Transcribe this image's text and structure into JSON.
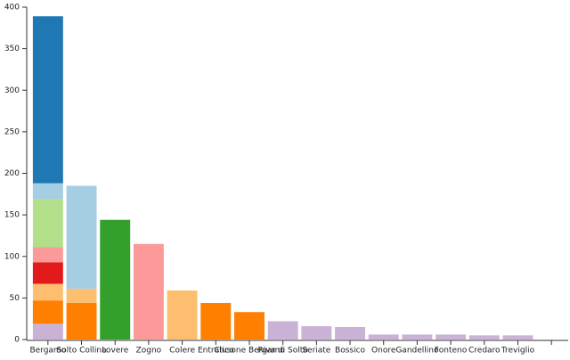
{
  "chart_data": {
    "type": "stacked_bar",
    "categories": [
      "Bergamo",
      "Solto Collina",
      "Lovere",
      "Zogno",
      "Colere",
      "Entratico",
      "Clusone Bergamo",
      "Riva di Solto",
      "Seriate",
      "Bossico",
      "Onore",
      "Gandellino",
      "Fonteno",
      "Credaro",
      "Treviglio",
      null
    ],
    "series": [
      {
        "color": "#cab2d6",
        "values": [
          19,
          null,
          null,
          null,
          null,
          null,
          null,
          22,
          16,
          15,
          6,
          6,
          6,
          5,
          5,
          null
        ]
      },
      {
        "color": "#ff7f00",
        "values": [
          28,
          44,
          null,
          null,
          null,
          44,
          33,
          null,
          null,
          null,
          null,
          null,
          null,
          null,
          null,
          null
        ]
      },
      {
        "color": "#fdbf6f",
        "values": [
          20,
          17,
          null,
          null,
          59,
          null,
          null,
          null,
          null,
          null,
          null,
          null,
          null,
          null,
          null,
          null
        ]
      },
      {
        "color": "#e31a1c",
        "values": [
          26,
          null,
          null,
          null,
          null,
          null,
          null,
          null,
          null,
          null,
          null,
          null,
          null,
          null,
          null,
          null
        ]
      },
      {
        "color": "#fb9a99",
        "values": [
          18,
          null,
          null,
          115,
          null,
          null,
          null,
          null,
          null,
          null,
          null,
          null,
          null,
          null,
          null,
          null
        ]
      },
      {
        "color": "#33a02c",
        "values": [
          null,
          null,
          144,
          null,
          null,
          null,
          null,
          null,
          null,
          null,
          null,
          null,
          null,
          null,
          null,
          null
        ]
      },
      {
        "color": "#b2df8a",
        "values": [
          58,
          null,
          null,
          null,
          null,
          null,
          null,
          null,
          null,
          null,
          null,
          null,
          null,
          null,
          null,
          null
        ]
      },
      {
        "color": "#a6cee3",
        "values": [
          19,
          124,
          null,
          null,
          null,
          null,
          null,
          null,
          null,
          null,
          null,
          null,
          null,
          null,
          null,
          null
        ]
      },
      {
        "color": "#1f78b4",
        "values": [
          201,
          null,
          null,
          null,
          null,
          null,
          null,
          null,
          null,
          null,
          null,
          null,
          null,
          null,
          null,
          null
        ]
      }
    ],
    "ylim": [
      0,
      400
    ],
    "yticks": [
      0,
      50,
      100,
      150,
      200,
      250,
      300,
      350,
      400
    ]
  }
}
